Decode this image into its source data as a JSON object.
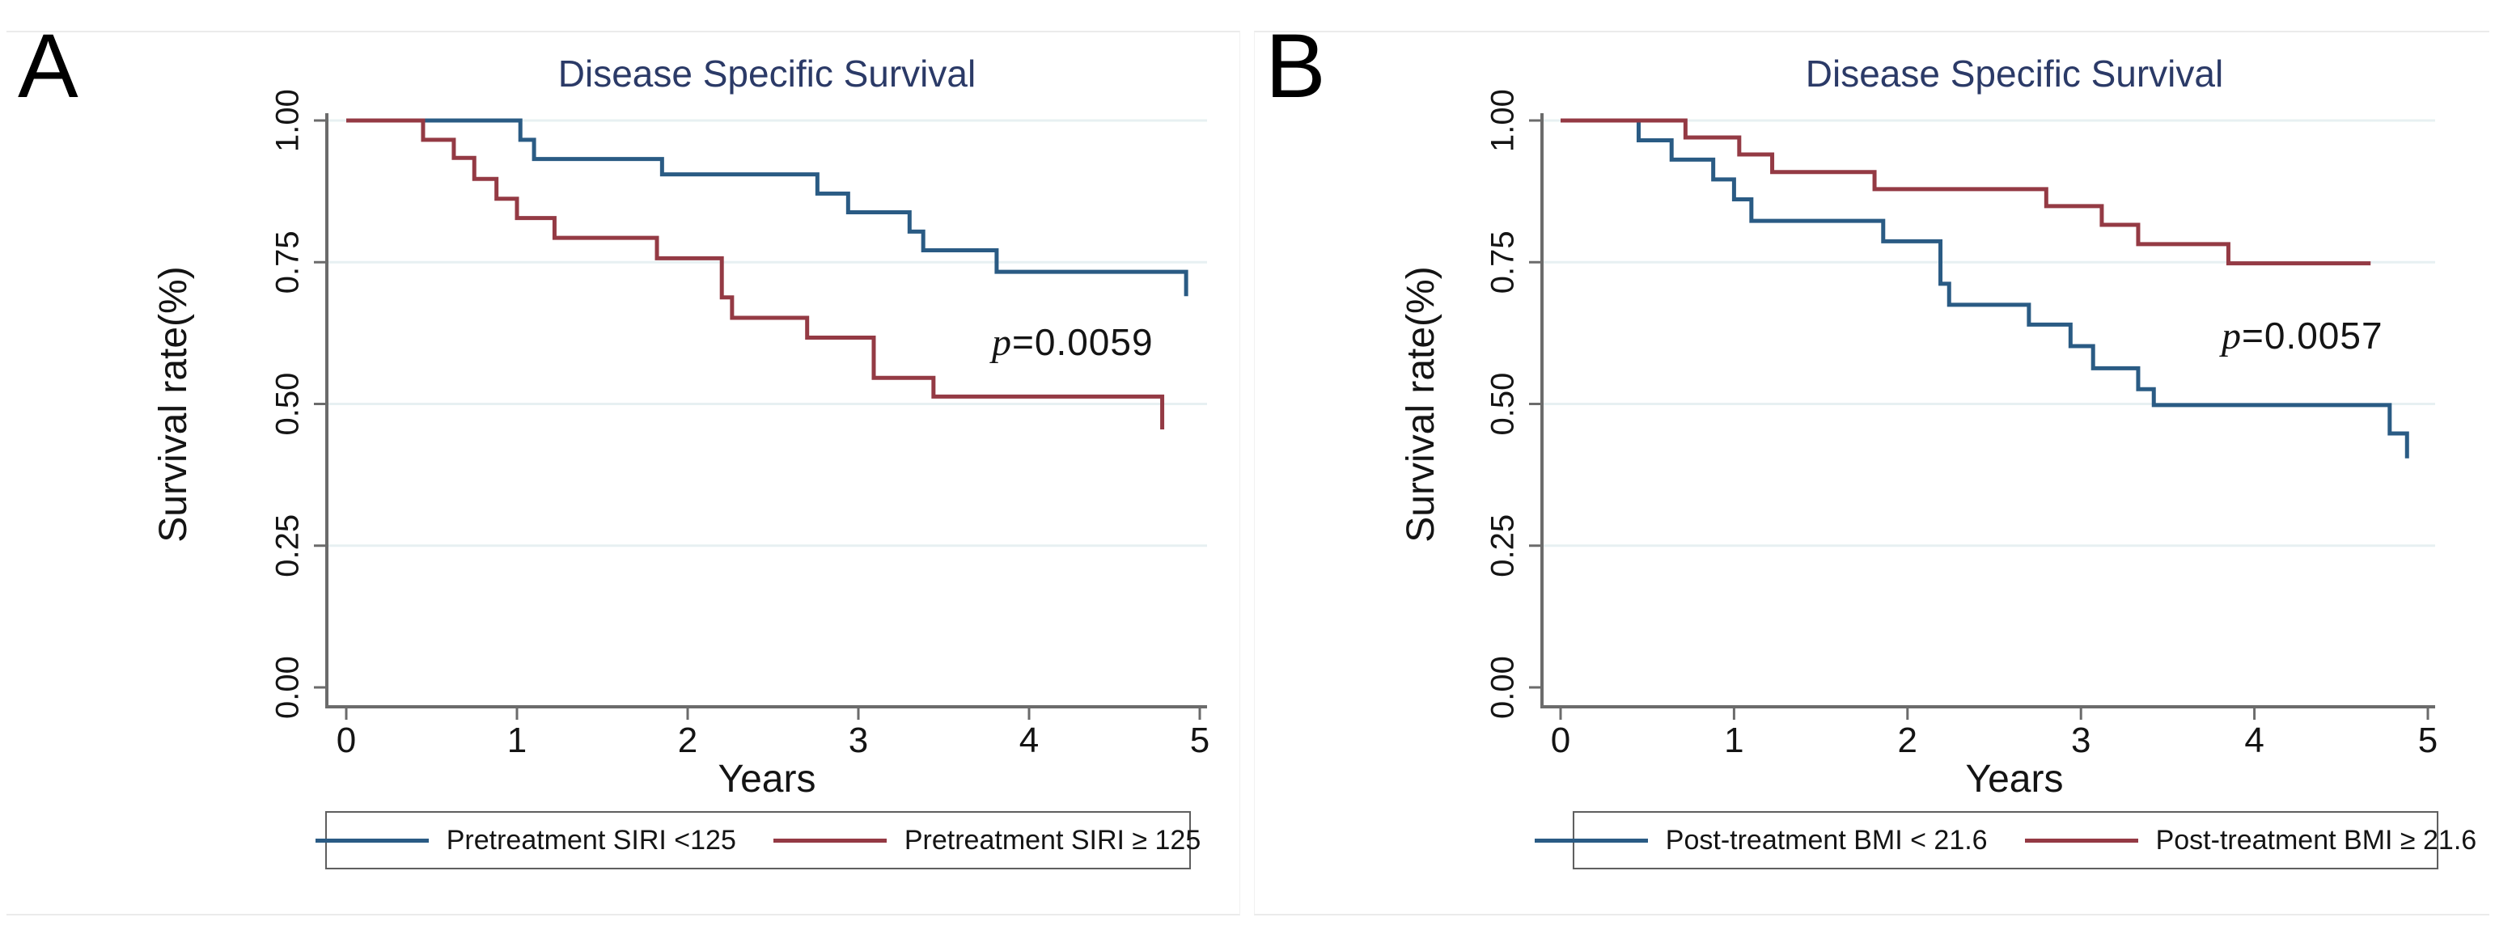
{
  "figure": {
    "panels": [
      {
        "letter": "A",
        "title": "Disease Specific Survival",
        "xlabel": "Years",
        "ylabel": "Survival rate(%)",
        "pvalue_symbol": "p",
        "pvalue_rest": "=0.0059",
        "legend": [
          {
            "label": "Pretreatment SIRI <125"
          },
          {
            "label": "Pretreatment SIRI ≥ 125"
          }
        ]
      },
      {
        "letter": "B",
        "title": "Disease Specific Survival",
        "xlabel": "Years",
        "ylabel": "Survival rate(%)",
        "pvalue_symbol": "p",
        "pvalue_rest": "=0.0057",
        "legend": [
          {
            "label": "Post-treatment BMI < 21.6"
          },
          {
            "label": "Post-treatment BMI ≥ 21.6"
          }
        ]
      }
    ],
    "colors": {
      "curve_blue": "#2a5b84",
      "curve_red": "#943a44",
      "title_navy": "#2b3a67",
      "axis_gray": "#6b6b6b",
      "gridline": "#e7f0f2"
    }
  },
  "chart_data": [
    {
      "type": "line",
      "subtype": "kaplan-meier-step",
      "title": "Disease Specific Survival",
      "xlabel": "Years",
      "ylabel": "Survival rate(%)",
      "xlim": [
        0,
        5
      ],
      "ylim": [
        0.0,
        1.0
      ],
      "xticks": [
        "0",
        "1",
        "2",
        "3",
        "4",
        "5"
      ],
      "yticks": [
        "0.00",
        "0.25",
        "0.50",
        "0.75",
        "1.00"
      ],
      "grid": true,
      "legend_position": "bottom",
      "annotation": "p=0.0059",
      "series": [
        {
          "name": "Pretreatment SIRI <125",
          "color": "#2a5b84",
          "points": [
            [
              0,
              1.0
            ],
            [
              1.02,
              0.966
            ],
            [
              1.1,
              0.932
            ],
            [
              1.85,
              0.905
            ],
            [
              2.76,
              0.871
            ],
            [
              2.94,
              0.838
            ],
            [
              3.3,
              0.804
            ],
            [
              3.38,
              0.771
            ],
            [
              3.81,
              0.733
            ],
            [
              4.92,
              0.69
            ]
          ],
          "end_x": 4.92
        },
        {
          "name": "Pretreatment SIRI ≥ 125",
          "color": "#943a44",
          "points": [
            [
              0,
              1.0
            ],
            [
              0.45,
              0.966
            ],
            [
              0.63,
              0.934
            ],
            [
              0.75,
              0.897
            ],
            [
              0.88,
              0.862
            ],
            [
              1.0,
              0.828
            ],
            [
              1.22,
              0.793
            ],
            [
              1.82,
              0.757
            ],
            [
              2.2,
              0.688
            ],
            [
              2.26,
              0.652
            ],
            [
              2.7,
              0.617
            ],
            [
              3.09,
              0.546
            ],
            [
              3.44,
              0.513
            ],
            [
              4.78,
              0.455
            ]
          ],
          "end_x": 4.78
        }
      ]
    },
    {
      "type": "line",
      "subtype": "kaplan-meier-step",
      "title": "Disease Specific Survival",
      "xlabel": "Years",
      "ylabel": "Survival rate(%)",
      "xlim": [
        0,
        5
      ],
      "ylim": [
        0.0,
        1.0
      ],
      "xticks": [
        "0",
        "1",
        "2",
        "3",
        "4",
        "5"
      ],
      "yticks": [
        "0.00",
        "0.25",
        "0.50",
        "0.75",
        "1.00"
      ],
      "grid": true,
      "legend_position": "bottom",
      "annotation": "p=0.0057",
      "series": [
        {
          "name": "Post-treatment BMI < 21.6",
          "color": "#2a5b84",
          "points": [
            [
              0,
              1.0
            ],
            [
              0.45,
              0.965
            ],
            [
              0.64,
              0.931
            ],
            [
              0.88,
              0.896
            ],
            [
              1.0,
              0.861
            ],
            [
              1.1,
              0.823
            ],
            [
              1.86,
              0.787
            ],
            [
              2.19,
              0.712
            ],
            [
              2.24,
              0.675
            ],
            [
              2.7,
              0.64
            ],
            [
              2.94,
              0.602
            ],
            [
              3.07,
              0.563
            ],
            [
              3.33,
              0.526
            ],
            [
              3.42,
              0.498
            ],
            [
              4.78,
              0.448
            ],
            [
              4.88,
              0.404
            ]
          ],
          "end_x": 4.88
        },
        {
          "name": "Post-treatment BMI ≥ 21.6",
          "color": "#943a44",
          "points": [
            [
              0,
              1.0
            ],
            [
              0.72,
              0.97
            ],
            [
              1.03,
              0.94
            ],
            [
              1.22,
              0.909
            ],
            [
              1.81,
              0.879
            ],
            [
              2.8,
              0.849
            ],
            [
              3.12,
              0.816
            ],
            [
              3.33,
              0.782
            ],
            [
              3.85,
              0.748
            ]
          ],
          "end_x": 4.67
        }
      ]
    }
  ]
}
